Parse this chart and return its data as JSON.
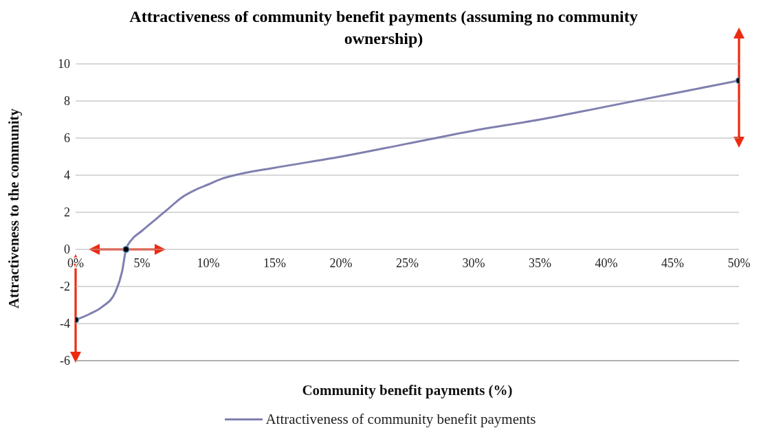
{
  "chart_data": {
    "type": "line",
    "title": "Attractiveness of community benefit payments (assuming no community ownership)",
    "xlabel": "Community benefit payments (%)",
    "ylabel": "Attractiveness to the community",
    "x": [
      0,
      1,
      2,
      3,
      3.5,
      3.8,
      4.2,
      5,
      6,
      7,
      8,
      9,
      10,
      11,
      12,
      15,
      20,
      25,
      30,
      35,
      40,
      45,
      50
    ],
    "series": [
      {
        "name": "Attractiveness of community benefit payments",
        "color": "#7f7fb0",
        "values": [
          -3.8,
          -3.5,
          -3.1,
          -2.3,
          -1.2,
          0,
          0.5,
          1.0,
          1.6,
          2.2,
          2.8,
          3.2,
          3.5,
          3.8,
          4.0,
          4.4,
          5.0,
          5.7,
          6.4,
          7.0,
          7.7,
          8.4,
          9.1
        ]
      },
      {
        "type": "scatter",
        "color": "#000000",
        "x": [
          0,
          3.8,
          50
        ],
        "values": [
          -3.8,
          0,
          9.1
        ]
      }
    ],
    "xlim": [
      0,
      50
    ],
    "xticks": [
      {
        "value": 0,
        "label": "0%"
      },
      {
        "value": 5,
        "label": "5%"
      },
      {
        "value": 10,
        "label": "10%"
      },
      {
        "value": 15,
        "label": "15%"
      },
      {
        "value": 20,
        "label": "20%"
      },
      {
        "value": 25,
        "label": "25%"
      },
      {
        "value": 30,
        "label": "30%"
      },
      {
        "value": 35,
        "label": "35%"
      },
      {
        "value": 40,
        "label": "40%"
      },
      {
        "value": 45,
        "label": "45%"
      },
      {
        "value": 50,
        "label": "50%"
      }
    ],
    "ylim": [
      -6,
      10
    ],
    "yticks": [
      -6,
      -4,
      -2,
      0,
      2,
      4,
      6,
      8,
      10
    ],
    "grid": "y",
    "legend": "bottom",
    "line_style": "solid"
  }
}
